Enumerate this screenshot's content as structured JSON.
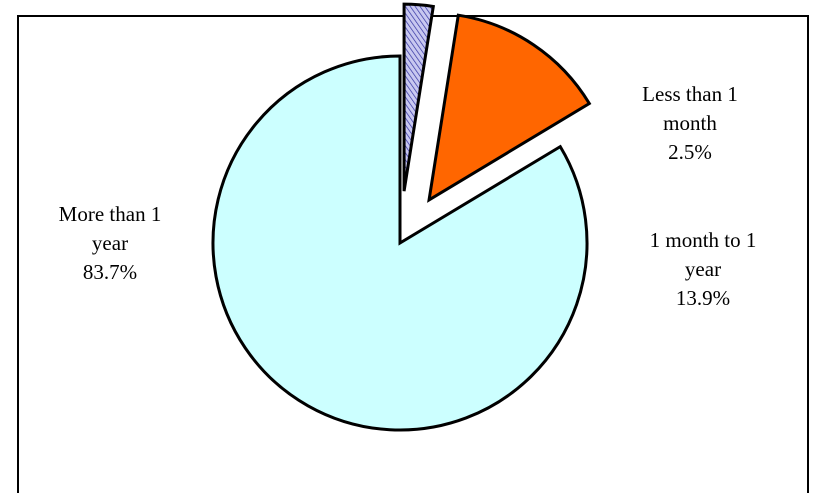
{
  "chart_data": {
    "type": "pie",
    "title": "",
    "start_angle_deg": 90,
    "direction": "clockwise",
    "slices": [
      {
        "label_lines": [
          "Less than 1",
          "month"
        ],
        "value": 2.5,
        "value_label": "2.5%",
        "fill": "#c8c8f0",
        "pattern": "diagonal-hatch",
        "hatch_color": "#3030a0",
        "exploded": true
      },
      {
        "label_lines": [
          "1 month to 1",
          "year"
        ],
        "value": 13.9,
        "value_label": "13.9%",
        "fill": "#ff6600",
        "pattern": "solid",
        "exploded": true
      },
      {
        "label_lines": [
          "More than 1",
          "year"
        ],
        "value": 83.7,
        "value_label": "83.7%",
        "fill": "#ccffff",
        "pattern": "solid",
        "exploded": false
      }
    ],
    "legend": "none",
    "outline_color": "#000000"
  }
}
